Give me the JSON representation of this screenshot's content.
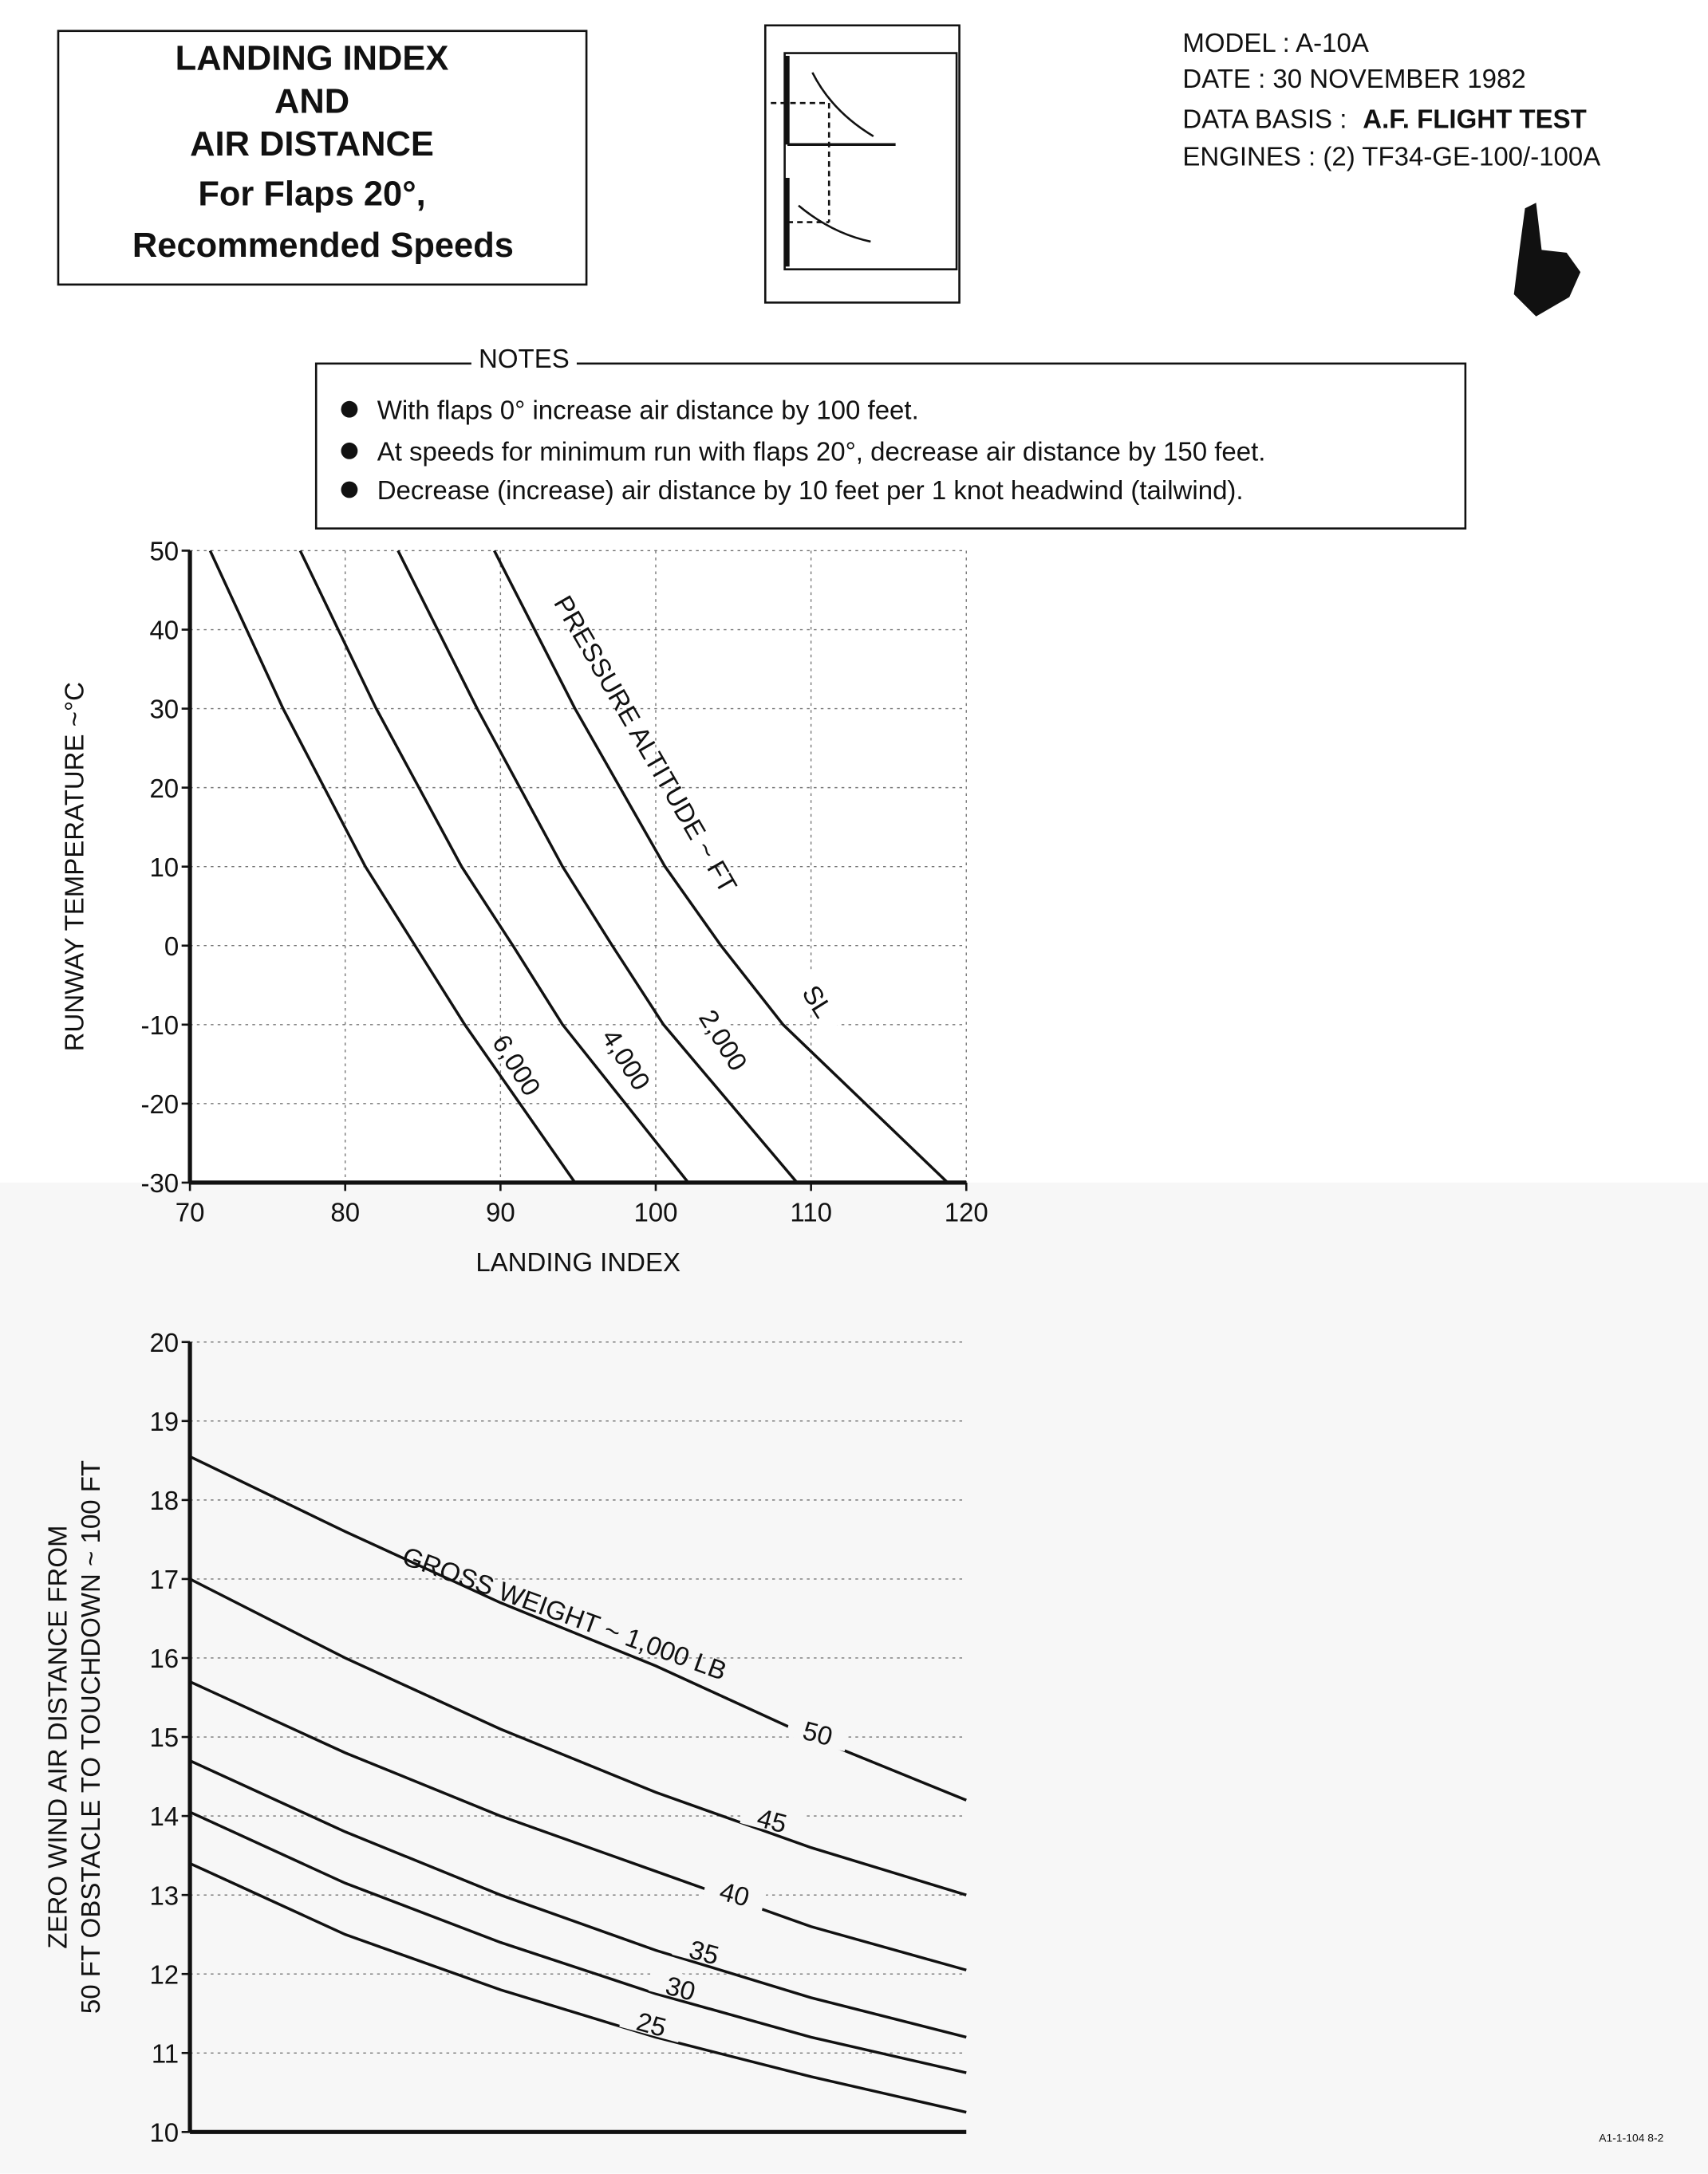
{
  "header": {
    "title_lines": [
      "LANDING INDEX",
      "AND",
      "AIR DISTANCE",
      "For Flaps 20°,",
      "Recommended Speeds"
    ],
    "model": "MODEL : A-10A",
    "date": "DATE : 30 NOVEMBER 1982",
    "data_basis_label": "DATA BASIS :",
    "data_basis": "A.F. FLIGHT TEST",
    "engines": "ENGINES : (2) TF34-GE-100/-100A"
  },
  "notes": {
    "title": "NOTES",
    "items": [
      "With flaps 0° increase air distance by 100 feet.",
      "At speeds for minimum run with flaps 20°, decrease air distance by 150 feet.",
      "Decrease (increase) air distance by 10 feet per 1 knot headwind (tailwind)."
    ]
  },
  "footer": "A1-1-104 8-2",
  "chart_data": [
    {
      "type": "line",
      "x_label": "LANDING INDEX",
      "y_label": [
        "RUNWAY TEMPERATURE ~°C"
      ],
      "annotation": "PRESSURE ALTITUDE ~ FT",
      "xlim": [
        70,
        120
      ],
      "xticks": [
        70,
        80,
        90,
        100,
        110,
        120
      ],
      "ylim": [
        -30,
        50
      ],
      "yticks": [
        -30,
        -20,
        -10,
        0,
        10,
        20,
        30,
        40,
        50
      ],
      "grid": true,
      "series": [
        {
          "name": "SL",
          "color": "#111111",
          "x": [
            89.6,
            94.8,
            100.6,
            104.2,
            108.2,
            118.8
          ],
          "values": [
            50,
            30,
            10,
            0,
            -10,
            -30
          ]
        },
        {
          "name": "2,000",
          "color": "#111111",
          "x": [
            83.4,
            88.5,
            94.0,
            97.2,
            100.5,
            109.1
          ],
          "values": [
            50,
            30,
            10,
            0,
            -10,
            -30
          ]
        },
        {
          "name": "4,000",
          "color": "#111111",
          "x": [
            77.1,
            82.0,
            87.5,
            90.8,
            94.0,
            102.1
          ],
          "values": [
            50,
            30,
            10,
            0,
            -10,
            -30
          ]
        },
        {
          "name": "6,000",
          "color": "#111111",
          "x": [
            71.3,
            76.0,
            81.3,
            84.5,
            87.7,
            94.8
          ],
          "values": [
            50,
            30,
            10,
            0,
            -10,
            -30
          ]
        }
      ]
    },
    {
      "type": "line",
      "y_label": [
        "ZERO WIND AIR DISTANCE FROM",
        "50 FT OBSTACLE TO TOUCHDOWN ~ 100 FT"
      ],
      "annotation": "GROSS WEIGHT ~ 1,000 LB",
      "xlim": [
        70,
        120
      ],
      "ylim": [
        10,
        20
      ],
      "yticks": [
        10,
        11,
        12,
        13,
        14,
        15,
        16,
        17,
        18,
        19,
        20
      ],
      "grid": true,
      "series": [
        {
          "name": "50",
          "color": "#111111",
          "x": [
            70,
            80,
            90,
            100,
            110,
            120
          ],
          "values": [
            18.55,
            17.6,
            16.7,
            15.9,
            15.0,
            14.2
          ]
        },
        {
          "name": "45",
          "color": "#111111",
          "x": [
            70,
            80,
            90,
            100,
            110,
            120
          ],
          "values": [
            17.0,
            16.0,
            15.1,
            14.3,
            13.6,
            13.0
          ]
        },
        {
          "name": "40",
          "color": "#111111",
          "x": [
            70,
            80,
            90,
            100,
            110,
            120
          ],
          "values": [
            15.7,
            14.8,
            14.0,
            13.3,
            12.6,
            12.05
          ]
        },
        {
          "name": "35",
          "color": "#111111",
          "x": [
            70,
            80,
            90,
            100,
            110,
            120
          ],
          "values": [
            14.7,
            13.8,
            13.0,
            12.3,
            11.7,
            11.2
          ]
        },
        {
          "name": "30",
          "color": "#111111",
          "x": [
            70,
            80,
            90,
            100,
            110,
            120
          ],
          "values": [
            14.05,
            13.15,
            12.4,
            11.75,
            11.2,
            10.75
          ]
        },
        {
          "name": "25",
          "color": "#111111",
          "x": [
            70,
            80,
            90,
            100,
            110,
            120
          ],
          "values": [
            13.4,
            12.5,
            11.8,
            11.2,
            10.7,
            10.25
          ]
        }
      ]
    }
  ]
}
